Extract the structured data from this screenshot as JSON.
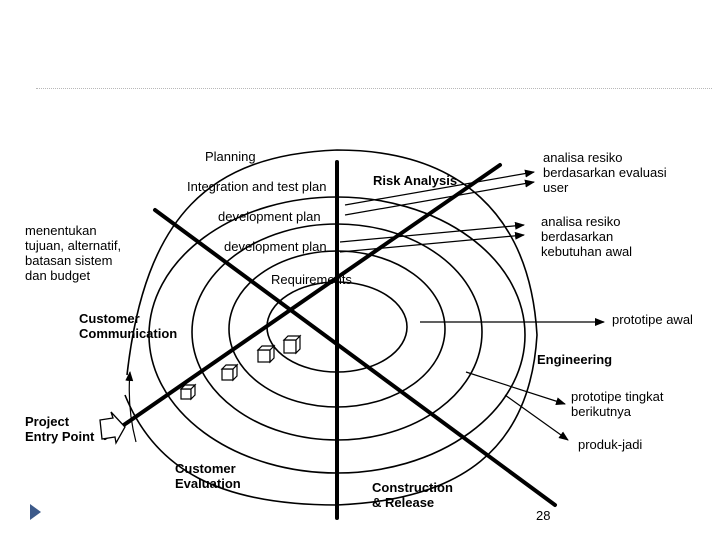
{
  "slide": {
    "page_number": "28"
  },
  "quadrants": {
    "planning": "Planning",
    "risk_analysis": "Risk Analysis",
    "customer_communication": "Customer\nCommunication",
    "engineering": "Engineering",
    "customer_evaluation": "Customer\nEvaluation",
    "construction_release": "Construction\n& Release",
    "project_entry_point": "Project\nEntry Point"
  },
  "spiral_labels": {
    "integration_test_plan": "Integration and test plan",
    "development_plan_1": "development plan",
    "development_plan_2": "development plan",
    "requirements": "Requirements"
  },
  "notes": {
    "planning_note": "menentukan\ntujuan, alternatif,\nbatasan sistem\ndan budget",
    "risk_note_1": "analisa resiko\nberdasarkan evaluasi\nuser",
    "risk_note_2": "analisa resiko\nberdasarkan\nkebutuhan awal",
    "prototype_initial": "prototipe awal",
    "prototype_next": "prototipe tingkat\nberikutnya",
    "final_product": "produk-jadi"
  },
  "colors": {
    "bullet": "#3d5a8a",
    "divider": "#b8b8b8"
  }
}
